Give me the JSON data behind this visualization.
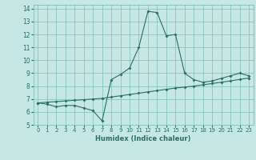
{
  "title": "",
  "xlabel": "Humidex (Indice chaleur)",
  "xlim": [
    -0.5,
    23.5
  ],
  "ylim": [
    5,
    14.3
  ],
  "yticks": [
    5,
    6,
    7,
    8,
    9,
    10,
    11,
    12,
    13,
    14
  ],
  "xticks": [
    0,
    1,
    2,
    3,
    4,
    5,
    6,
    7,
    8,
    9,
    10,
    11,
    12,
    13,
    14,
    15,
    16,
    17,
    18,
    19,
    20,
    21,
    22,
    23
  ],
  "bg_color": "#c5e8e5",
  "line_color": "#2d6e65",
  "grid_color": "#7bbfb5",
  "line1_x": [
    0,
    1,
    2,
    3,
    4,
    5,
    6,
    7,
    8,
    9,
    10,
    11,
    12,
    13,
    14,
    15,
    16,
    17,
    18,
    19,
    20,
    21,
    22,
    23
  ],
  "line1_y": [
    6.7,
    6.6,
    6.4,
    6.5,
    6.5,
    6.3,
    6.1,
    5.3,
    8.5,
    8.9,
    9.4,
    11.0,
    13.8,
    13.7,
    11.9,
    12.0,
    9.0,
    8.5,
    8.3,
    8.4,
    8.6,
    8.8,
    9.0,
    8.8
  ],
  "line2_x": [
    0,
    1,
    2,
    3,
    4,
    5,
    6,
    7,
    8,
    9,
    10,
    11,
    12,
    13,
    14,
    15,
    16,
    17,
    18,
    19,
    20,
    21,
    22,
    23
  ],
  "line2_y": [
    6.7,
    6.75,
    6.8,
    6.85,
    6.9,
    6.95,
    7.0,
    7.05,
    7.15,
    7.25,
    7.35,
    7.45,
    7.55,
    7.65,
    7.75,
    7.85,
    7.92,
    8.0,
    8.1,
    8.2,
    8.3,
    8.4,
    8.52,
    8.62
  ]
}
